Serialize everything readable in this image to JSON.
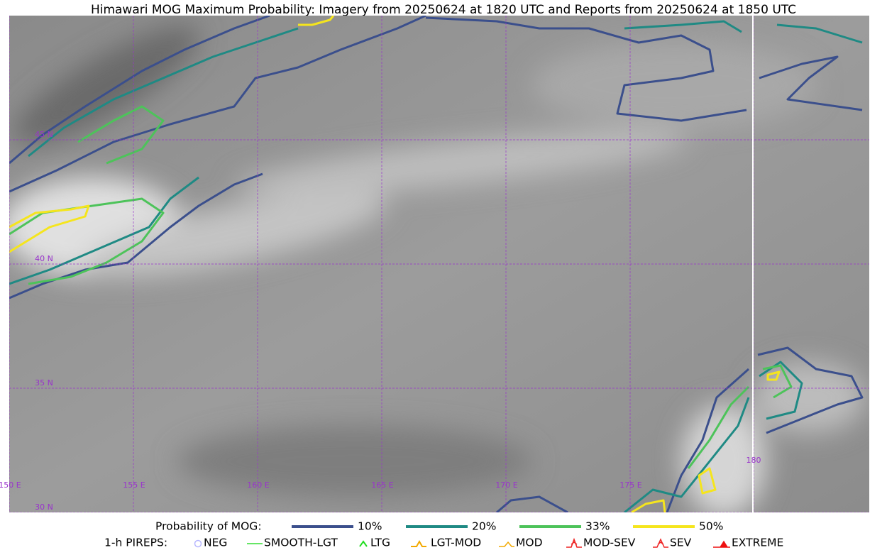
{
  "title": "Himawari MOG Maximum Probability: Imagery from 20250624 at 1820 UTC and Reports from 20250624 at 1850 UTC",
  "map": {
    "lon_labels": [
      "150 E",
      "155 E",
      "160 E",
      "165 E",
      "170 E",
      "175 E",
      "180"
    ],
    "lat_labels": [
      "45 N",
      "40 N",
      "35 N",
      "30 N"
    ]
  },
  "legend": {
    "probability": {
      "label": "Probability of MOG:",
      "levels": [
        {
          "label": "10%",
          "color": "#3b4f8c"
        },
        {
          "label": "20%",
          "color": "#1f8a84"
        },
        {
          "label": "33%",
          "color": "#4dc35a"
        },
        {
          "label": "50%",
          "color": "#f5e51d"
        }
      ]
    },
    "pireps": {
      "label": "1-h PIREPS:",
      "items": [
        "NEG",
        "SMOOTH-LGT",
        "LTG",
        "LGT-MOD",
        "MOD",
        "MOD-SEV",
        "SEV",
        "EXTREME"
      ]
    }
  }
}
